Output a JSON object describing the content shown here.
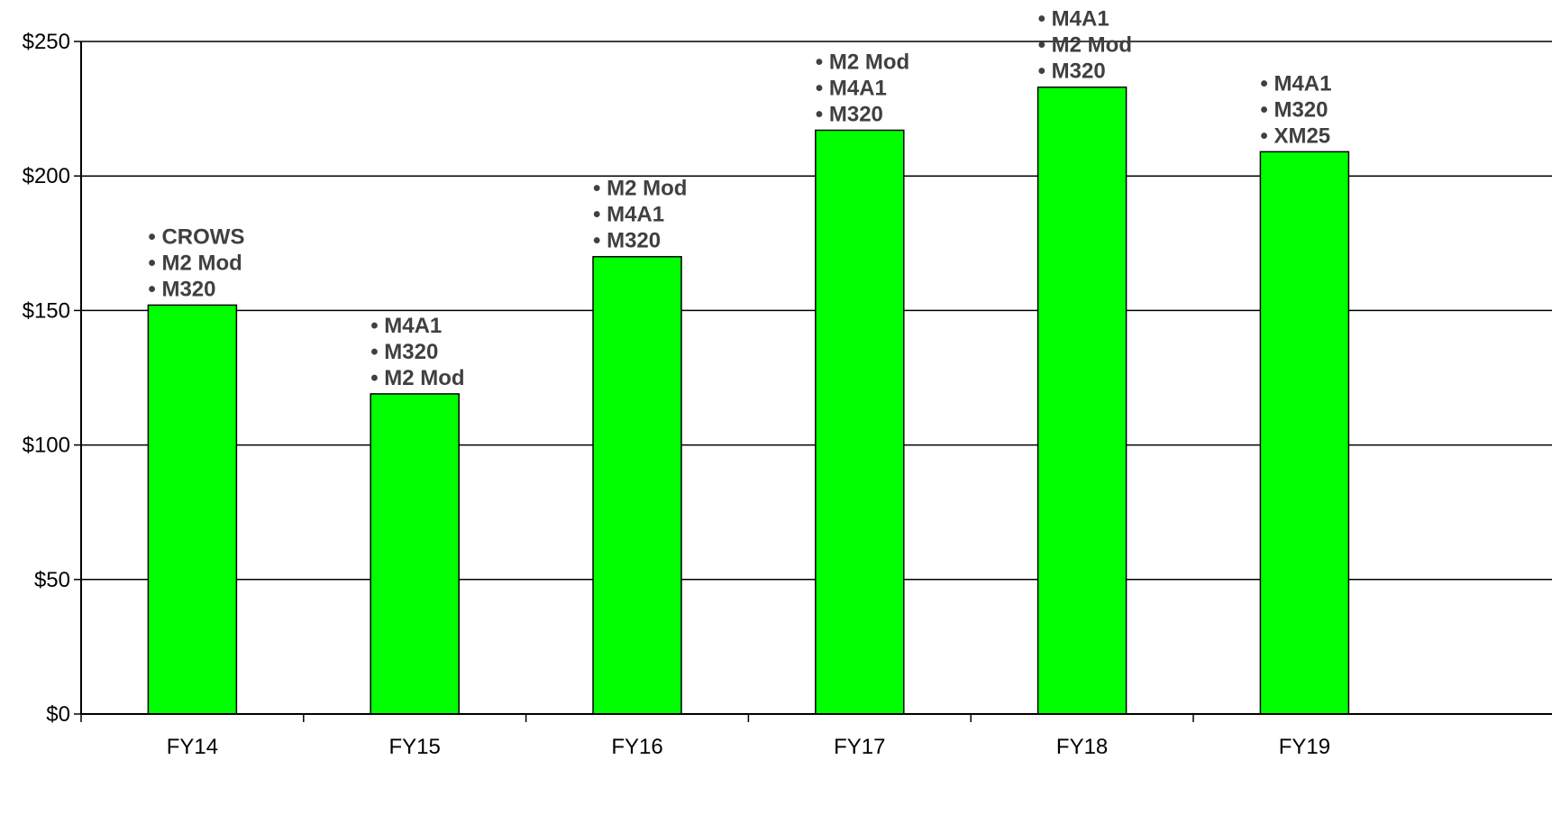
{
  "chart_data": {
    "type": "bar",
    "title": "",
    "xlabel": "",
    "ylabel": "",
    "categories": [
      "FY14",
      "FY15",
      "FY16",
      "FY17",
      "FY18",
      "FY19"
    ],
    "values": [
      152,
      119,
      170,
      217,
      233,
      209
    ],
    "ylim": [
      0,
      250
    ],
    "yticks": [
      0,
      50,
      100,
      150,
      200,
      250
    ],
    "ytick_labels": [
      "$0",
      "$50",
      "$100",
      "$150",
      "$200",
      "$250"
    ],
    "grid": true,
    "legend": "none",
    "bar_color": "#00ff00",
    "annotations": [
      [
        "• CROWS",
        "• M2 Mod",
        "• M320"
      ],
      [
        "• M4A1",
        "• M320",
        "• M2 Mod"
      ],
      [
        "• M2 Mod",
        "• M4A1",
        "• M320"
      ],
      [
        "• M2 Mod",
        "• M4A1",
        "• M320"
      ],
      [
        "• M4A1",
        "• M2 Mod",
        "• M320"
      ],
      [
        "• M4A1",
        "• M320",
        "• XM25"
      ]
    ]
  }
}
